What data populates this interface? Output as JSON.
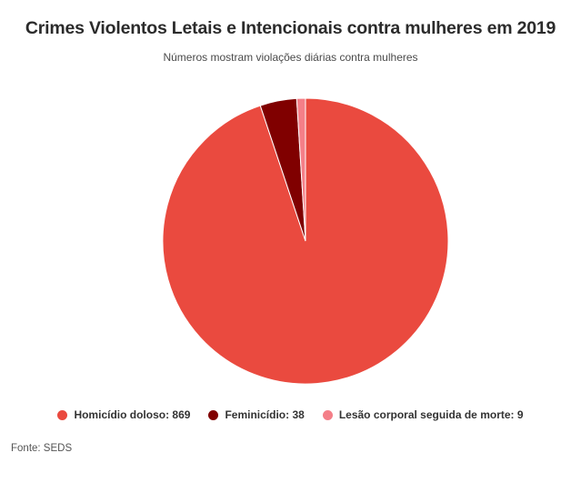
{
  "chart_data": {
    "type": "pie",
    "title": "Crimes Violentos Letais e Intencionais contra mulheres em 2019",
    "subtitle": "Números mostram violações diárias contra mulheres",
    "categories": [
      "Homicídio doloso",
      "Feminicídio",
      "Lesão corporal seguida de morte"
    ],
    "values": [
      869,
      38,
      9
    ],
    "colors": [
      "#ea4a3f",
      "#800000",
      "#f47f88"
    ],
    "legend_placement": "bottom-center",
    "legend_labels": [
      "Homicídio doloso: 869",
      "Feminicídio: 38",
      "Lesão corporal seguida de morte: 9"
    ]
  },
  "source": "Fonte: SEDS"
}
